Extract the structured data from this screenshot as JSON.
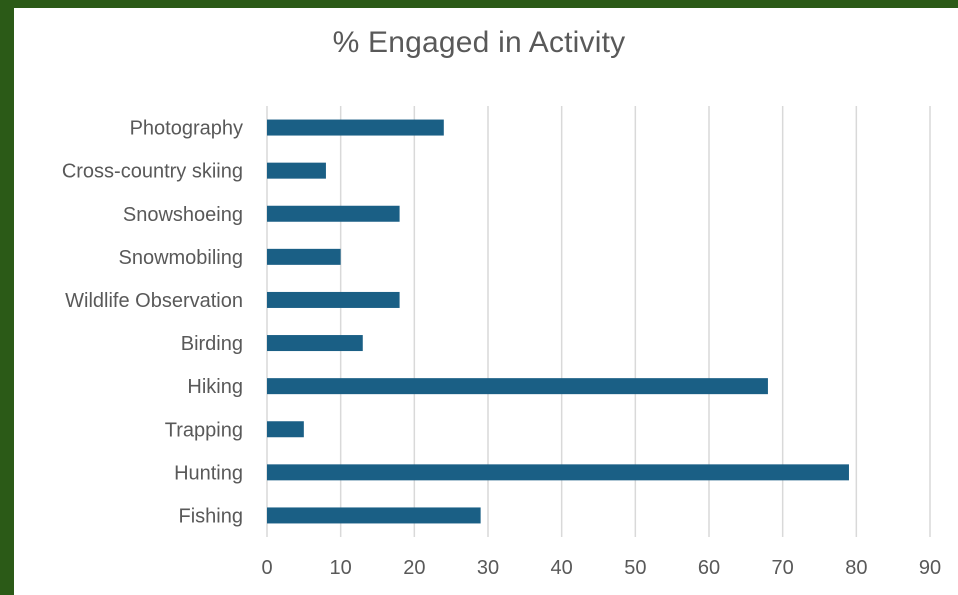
{
  "chart_data": {
    "type": "bar",
    "orientation": "horizontal",
    "title": "% Engaged in Activity",
    "xlabel": "",
    "ylabel": "",
    "categories": [
      "Photography",
      "Cross-country skiing",
      "Snowshoeing",
      "Snowmobiling",
      "Wildlife Observation",
      "Birding",
      "Hiking",
      "Trapping",
      "Hunting",
      "Fishing"
    ],
    "values": [
      24,
      8,
      18,
      10,
      18,
      13,
      68,
      5,
      79,
      29
    ],
    "xlim": [
      0,
      90
    ],
    "xticks": [
      "0",
      "10",
      "20",
      "30",
      "40",
      "50",
      "60",
      "70",
      "80",
      "90"
    ],
    "grid": "vertical",
    "legend": "none",
    "bar_color": "#1a5f85",
    "grid_color": "#d9d9d9",
    "frame_color": "#2b5a17"
  }
}
